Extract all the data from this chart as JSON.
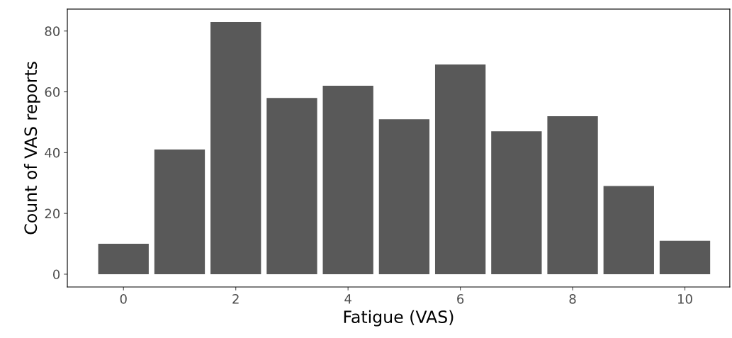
{
  "chart_data": {
    "type": "bar",
    "xlabel": "Fatigue (VAS)",
    "ylabel": "Count of VAS reports",
    "x": [
      0,
      1,
      2,
      3,
      4,
      5,
      6,
      7,
      8,
      9,
      10
    ],
    "values": [
      10,
      41,
      83,
      58,
      62,
      51,
      69,
      47,
      52,
      29,
      11
    ],
    "color": "#595959",
    "xlim": [
      -1.0,
      10.8
    ],
    "xticks": [
      0,
      2,
      4,
      6,
      8,
      10
    ],
    "ylim": [
      -4.2,
      87.2
    ],
    "yticks": [
      0,
      20,
      40,
      60,
      80
    ],
    "grid": false
  }
}
